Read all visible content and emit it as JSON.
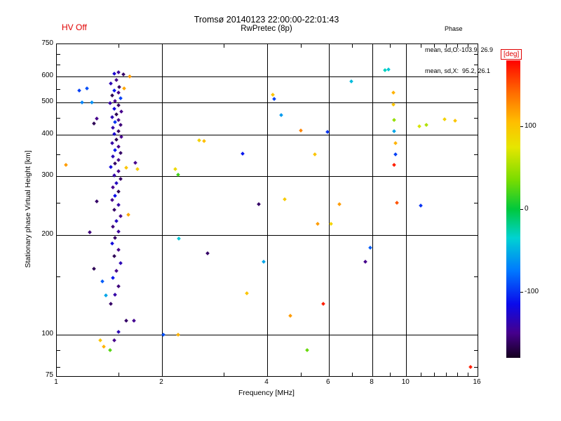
{
  "header": {
    "hv_status": "HV Off",
    "title": "Tromsø 20140123 22:00:00-22:01:43",
    "subtitle": "RwPretec (8p)",
    "stats": {
      "label": "Phase",
      "line_o": "mean, sd,O:-103.9, 26.9",
      "line_x": "mean, sd,X:  95.2, 26.1"
    }
  },
  "colors": {
    "accent_red": "#e00000",
    "axis": "#000000",
    "background": "#ffffff"
  },
  "colorbar": {
    "label": "[deg]",
    "ticks": [
      100,
      0,
      -100
    ],
    "range": [
      -180,
      180
    ],
    "stops": [
      {
        "phase": -180,
        "rgb": [
          20,
          0,
          30
        ]
      },
      {
        "phase": -150,
        "rgb": [
          70,
          0,
          140
        ]
      },
      {
        "phase": -115,
        "rgb": [
          10,
          10,
          235
        ]
      },
      {
        "phase": -75,
        "rgb": [
          0,
          120,
          255
        ]
      },
      {
        "phase": -35,
        "rgb": [
          0,
          210,
          210
        ]
      },
      {
        "phase": 0,
        "rgb": [
          0,
          200,
          60
        ]
      },
      {
        "phase": 35,
        "rgb": [
          120,
          220,
          0
        ]
      },
      {
        "phase": 75,
        "rgb": [
          230,
          230,
          0
        ]
      },
      {
        "phase": 105,
        "rgb": [
          255,
          190,
          0
        ]
      },
      {
        "phase": 140,
        "rgb": [
          255,
          110,
          0
        ]
      },
      {
        "phase": 170,
        "rgb": [
          255,
          30,
          0
        ]
      },
      {
        "phase": 180,
        "rgb": [
          255,
          0,
          0
        ]
      }
    ]
  },
  "chart_data": {
    "type": "scatter",
    "title": "Tromsø 20140123 22:00:00-22:01:43",
    "subtitle": "RwPretec (8p)",
    "xlabel": "Frequency [MHz]",
    "ylabel": "Stationary phase Virtual Height [km]",
    "xscale": "log",
    "yscale": "log",
    "xlim": [
      1,
      16
    ],
    "ylim": [
      75,
      750
    ],
    "color_dimension": "phase [deg], range -180 to 180",
    "x_major_ticks": [
      1,
      2,
      4,
      6,
      8,
      10,
      16
    ],
    "x_gridlines": [
      2,
      4,
      6,
      8,
      10
    ],
    "x_minor_ticks": [
      1.5,
      3,
      5,
      7,
      9,
      11,
      12,
      13,
      14,
      15
    ],
    "y_major_ticks": [
      75,
      100,
      200,
      300,
      400,
      500,
      600,
      750
    ],
    "y_gridlines": [
      100,
      200,
      300,
      400,
      500,
      600
    ],
    "y_minor_ticks": [
      80,
      90,
      150,
      250,
      350,
      450,
      550,
      650,
      700
    ],
    "series": [
      {
        "name": "stationary-phase-echoes",
        "point_format": [
          "frequency_MHz",
          "virtual_height_km",
          "phase_deg"
        ],
        "points": [
          [
            1.5,
            618,
            -145
          ],
          [
            1.46,
            612,
            -125
          ],
          [
            1.55,
            607,
            -160
          ],
          [
            1.62,
            600,
            120
          ],
          [
            1.48,
            585,
            -150
          ],
          [
            1.43,
            570,
            -135
          ],
          [
            1.51,
            558,
            -160
          ],
          [
            1.56,
            553,
            115
          ],
          [
            1.46,
            545,
            -110
          ],
          [
            1.5,
            535,
            -150
          ],
          [
            1.44,
            525,
            -165
          ],
          [
            1.52,
            515,
            -95
          ],
          [
            1.47,
            505,
            -150
          ],
          [
            1.42,
            498,
            -140
          ],
          [
            1.5,
            490,
            -160
          ],
          [
            1.46,
            480,
            -120
          ],
          [
            1.53,
            470,
            -150
          ],
          [
            1.48,
            462,
            -165
          ],
          [
            1.44,
            452,
            -135
          ],
          [
            1.5,
            444,
            -150
          ],
          [
            1.47,
            436,
            -100
          ],
          [
            1.52,
            428,
            -155
          ],
          [
            1.45,
            420,
            -140
          ],
          [
            1.5,
            410,
            -160
          ],
          [
            1.46,
            402,
            -125
          ],
          [
            1.53,
            394,
            -150
          ],
          [
            1.48,
            386,
            -165
          ],
          [
            1.44,
            378,
            -140
          ],
          [
            1.5,
            368,
            -150
          ],
          [
            1.47,
            360,
            -110
          ],
          [
            1.52,
            352,
            -160
          ],
          [
            1.45,
            344,
            -135
          ],
          [
            1.5,
            336,
            -150
          ],
          [
            1.47,
            328,
            -160
          ],
          [
            1.43,
            320,
            -120
          ],
          [
            1.58,
            318,
            100
          ],
          [
            1.5,
            310,
            -150
          ],
          [
            1.46,
            302,
            -140
          ],
          [
            1.52,
            294,
            -160
          ],
          [
            1.48,
            286,
            -130
          ],
          [
            1.45,
            278,
            -150
          ],
          [
            1.5,
            270,
            -165
          ],
          [
            1.47,
            262,
            -115
          ],
          [
            1.44,
            254,
            -150
          ],
          [
            1.5,
            246,
            -140
          ],
          [
            1.46,
            238,
            -160
          ],
          [
            1.6,
            230,
            115
          ],
          [
            1.52,
            228,
            -150
          ],
          [
            1.48,
            220,
            -130
          ],
          [
            1.45,
            212,
            -155
          ],
          [
            1.5,
            204,
            -145
          ],
          [
            1.47,
            196,
            -160
          ],
          [
            1.44,
            188,
            -120
          ],
          [
            1.5,
            180,
            -150
          ],
          [
            1.46,
            172,
            -165
          ],
          [
            1.52,
            164,
            -135
          ],
          [
            1.48,
            156,
            -150
          ],
          [
            1.45,
            148,
            -110
          ],
          [
            1.5,
            140,
            -155
          ],
          [
            1.47,
            132,
            -140
          ],
          [
            1.43,
            124,
            -160
          ],
          [
            1.58,
            110,
            -160
          ],
          [
            1.66,
            110,
            -148
          ],
          [
            1.5,
            102,
            -135
          ],
          [
            1.46,
            96,
            -150
          ],
          [
            1.42,
            90,
            25
          ],
          [
            1.36,
            92,
            110
          ],
          [
            1.33,
            96,
            100
          ],
          [
            1.06,
            325,
            120
          ],
          [
            1.16,
            543,
            -95
          ],
          [
            1.18,
            500,
            -70
          ],
          [
            1.22,
            552,
            -90
          ],
          [
            1.26,
            500,
            -65
          ],
          [
            1.3,
            448,
            -150
          ],
          [
            1.28,
            432,
            -165
          ],
          [
            1.24,
            203,
            -155
          ],
          [
            1.3,
            252,
            -160
          ],
          [
            1.28,
            158,
            -165
          ],
          [
            1.35,
            145,
            -85
          ],
          [
            1.38,
            131,
            -55
          ],
          [
            1.68,
            330,
            -150
          ],
          [
            1.7,
            315,
            95
          ],
          [
            2.02,
            100,
            -90
          ],
          [
            2.22,
            100,
            110
          ],
          [
            2.18,
            315,
            85
          ],
          [
            2.22,
            303,
            20
          ],
          [
            2.23,
            195,
            -40
          ],
          [
            2.55,
            385,
            90
          ],
          [
            2.64,
            383,
            105
          ],
          [
            2.7,
            176,
            -160
          ],
          [
            3.4,
            351,
            -110
          ],
          [
            3.5,
            133,
            100
          ],
          [
            3.78,
            247,
            -160
          ],
          [
            3.9,
            166,
            -55
          ],
          [
            4.15,
            528,
            100
          ],
          [
            4.18,
            512,
            -95
          ],
          [
            4.38,
            458,
            -60
          ],
          [
            4.49,
            256,
            95
          ],
          [
            4.66,
            114,
            120
          ],
          [
            5.0,
            412,
            130
          ],
          [
            5.2,
            90,
            30
          ],
          [
            5.47,
            349,
            100
          ],
          [
            5.57,
            216,
            120
          ],
          [
            5.8,
            124,
            170
          ],
          [
            5.95,
            408,
            -100
          ],
          [
            6.1,
            216,
            90
          ],
          [
            6.43,
            247,
            120
          ],
          [
            6.96,
            579,
            -45
          ],
          [
            7.64,
            166,
            -150
          ],
          [
            7.9,
            183,
            -85
          ],
          [
            8.7,
            625,
            -30
          ],
          [
            8.9,
            628,
            -40
          ],
          [
            9.2,
            536,
            110
          ],
          [
            9.2,
            493,
            100
          ],
          [
            9.25,
            444,
            45
          ],
          [
            9.25,
            410,
            -55
          ],
          [
            9.3,
            377,
            110
          ],
          [
            9.3,
            349,
            -95
          ],
          [
            9.25,
            324,
            170
          ],
          [
            9.4,
            250,
            150
          ],
          [
            10.9,
            425,
            70
          ],
          [
            11.0,
            245,
            -100
          ],
          [
            11.4,
            428,
            55
          ],
          [
            12.9,
            445,
            90
          ],
          [
            13.8,
            442,
            100
          ],
          [
            15.3,
            80,
            170
          ]
        ]
      }
    ]
  }
}
